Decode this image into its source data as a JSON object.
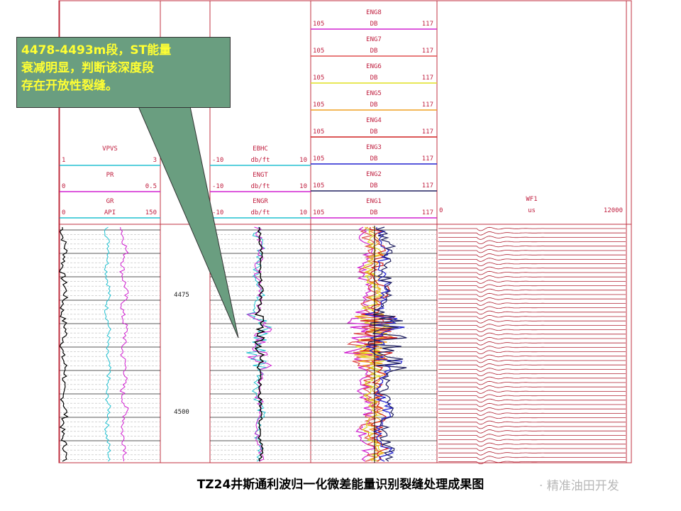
{
  "callout": {
    "lines": [
      "4478-4493m段，ST能量",
      "衰减明显，判断该深度段",
      "存在开放性裂缝。"
    ]
  },
  "caption": "TZ24井斯通利波归一化微差能量识别裂缝处理成果图",
  "watermark": "· 精准油田开发",
  "tracks": [
    {
      "curves": [
        {
          "name": "VPVS",
          "min": 1,
          "max": 3,
          "color": "#20c0d0"
        },
        {
          "name": "PR",
          "min": 0,
          "max": 0.5,
          "color": "#d020d0"
        },
        {
          "name": "GR",
          "unit": "API",
          "min": 0,
          "max": 150,
          "color": "#20c0d0"
        }
      ]
    },
    {
      "curves": [
        {
          "name": "EBHC",
          "unit": "db/ft",
          "min": -10,
          "max": 10,
          "color": "#20c0d0"
        },
        {
          "name": "ENGT",
          "unit": "db/ft",
          "min": -10,
          "max": 10,
          "color": "#d020d0"
        },
        {
          "name": "ENGR",
          "unit": "db/ft",
          "min": -10,
          "max": 10,
          "color": "#20c0d0"
        }
      ]
    },
    {
      "curves": [
        {
          "name": "ENG8",
          "unit": "DB",
          "min": 105,
          "max": 117,
          "color": "#d020d0"
        },
        {
          "name": "ENG7",
          "unit": "DB",
          "min": 105,
          "max": 117,
          "color": "#e05050"
        },
        {
          "name": "ENG6",
          "unit": "DB",
          "min": 105,
          "max": 117,
          "color": "#e0e020"
        },
        {
          "name": "ENG5",
          "unit": "DB",
          "min": 105,
          "max": 117,
          "color": "#f0a020"
        },
        {
          "name": "ENG4",
          "unit": "DB",
          "min": 105,
          "max": 117,
          "color": "#d02020"
        },
        {
          "name": "ENG3",
          "unit": "DB",
          "min": 105,
          "max": 117,
          "color": "#2020d0"
        },
        {
          "name": "ENG2",
          "unit": "DB",
          "min": 105,
          "max": 117,
          "color": "#202060"
        },
        {
          "name": "ENG1",
          "unit": "DB",
          "min": 105,
          "max": 117,
          "color": "#d020d0"
        }
      ]
    },
    {
      "curves": [
        {
          "name": "WF1",
          "unit": "us",
          "min": 0,
          "max": 12000,
          "color": "#c03040"
        }
      ]
    }
  ],
  "depths": [
    4475,
    4500
  ]
}
